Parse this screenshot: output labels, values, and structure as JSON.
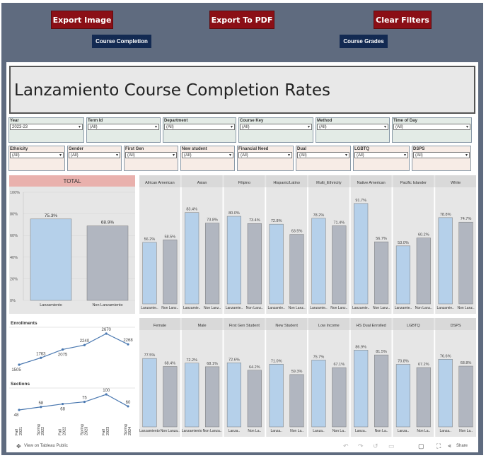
{
  "buttons": {
    "export_image": "Export Image",
    "export_pdf": "Export To PDF",
    "clear_filters": "Clear Filters",
    "course_completion": "Course Completion",
    "course_grades": "Course Grades"
  },
  "title": "Lanzamiento Course Completion Rates",
  "filters_row1": [
    {
      "label": "Year",
      "value": "2023-23"
    },
    {
      "label": "Term Id",
      "value": "(All)"
    },
    {
      "label": "Department",
      "value": "(All)"
    },
    {
      "label": "Course Key",
      "value": "(All)"
    },
    {
      "label": "Method",
      "value": "(All)"
    },
    {
      "label": "Time of Day",
      "value": "(All)"
    }
  ],
  "filters_row2": [
    {
      "label": "Ethnicity",
      "value": "(All)"
    },
    {
      "label": "Gender",
      "value": "(All)"
    },
    {
      "label": "First Gen",
      "value": "(All)"
    },
    {
      "label": "New student",
      "value": "(All)"
    },
    {
      "label": "Financial Need",
      "value": "(All)"
    },
    {
      "label": "Dual",
      "value": "(All)"
    },
    {
      "label": "LGBTQ",
      "value": "(All)"
    },
    {
      "label": "DSPS",
      "value": "(All)"
    }
  ],
  "colors": {
    "lanz": "#b5d0ea",
    "non": "#b1b6c0",
    "total_header": "#e9b1ad"
  },
  "chart_data": [
    {
      "type": "bar",
      "title": "TOTAL",
      "categories": [
        "Lanzamiento",
        "Non Lanzamiento"
      ],
      "values": [
        75.3,
        68.9
      ],
      "value_labels": [
        "75.3%",
        "68.9%"
      ],
      "ylim": [
        0,
        100
      ],
      "yticks": [
        "100%",
        "80%",
        "60%",
        "40%",
        "20%",
        "0%"
      ]
    },
    {
      "type": "bar",
      "groups": [
        "African American",
        "Asian",
        "Filipino",
        "Hispanic/Latino",
        "Multi_Ethnicity",
        "Native American",
        "Pacific Islander",
        "White"
      ],
      "categories": [
        "Lanzamie..",
        "Non Lanz..",
        "Lanzamie..",
        "Non Lanz..",
        "Lanzamie..",
        "Non Lanz..",
        "Lanzamie..",
        "Non Lanz..",
        "Lanzamie..",
        "Non Lanz..",
        "Lanzamie..",
        "Non Lanz..",
        "Lanzamie..",
        "Non Lanz..",
        "Lanzamie..",
        "Non Lanz.."
      ],
      "values": [
        56.2,
        58.5,
        83.4,
        73.8,
        80.0,
        73.4,
        72.8,
        63.5,
        78.2,
        71.4,
        91.7,
        56.7,
        53.0,
        60.2,
        78.8,
        74.7
      ],
      "value_labels": [
        "56.2%",
        "58.5%",
        "83.4%",
        "73.8%",
        "80.0%",
        "73.4%",
        "72.8%",
        "63.5%",
        "78.2%",
        "71.4%",
        "91.7%",
        "56.7%",
        "53.0%",
        "60.2%",
        "78.8%",
        "74.7%"
      ]
    },
    {
      "type": "line",
      "title": "Enrollments",
      "x": [
        "Fall 2021",
        "Spring 2022",
        "Fall 2022",
        "Spring 2023",
        "Fall 2023",
        "Spring 2024"
      ],
      "values": [
        1505,
        1763,
        2075,
        2240,
        2670,
        2268
      ],
      "value_labels": [
        "1505",
        "1763",
        "2075",
        "2240",
        "2670",
        "2268"
      ]
    },
    {
      "type": "line",
      "title": "Sections",
      "x": [
        "Fall 2021",
        "Spring 2022",
        "Fall 2022",
        "Spring 2023",
        "Fall 2023",
        "Spring 2024"
      ],
      "values": [
        48,
        58,
        68,
        75,
        100,
        60
      ],
      "value_labels": [
        "48",
        "58",
        "68",
        "75",
        "100",
        "60"
      ]
    },
    {
      "type": "bar",
      "groups": [
        "Female",
        "Male",
        "First Gen Student",
        "New Student",
        "Low Income",
        "HS Dual Enrolled",
        "LGBTQ",
        "DSPS"
      ],
      "categories": [
        "Lanzamiento",
        "Non Lanza..",
        "Lanzamiento",
        "Non Lanza..",
        "Lanza..",
        "Non La..",
        "Lanza..",
        "Non La..",
        "Lanza..",
        "Non La..",
        "Lanza..",
        "Non La..",
        "Lanza..",
        "Non La..",
        "Lanza..",
        "Non La.."
      ],
      "values": [
        77.5,
        68.4,
        72.2,
        68.1,
        72.6,
        64.2,
        71.0,
        59.3,
        75.7,
        67.1,
        86.9,
        81.5,
        70.8,
        67.2,
        76.6,
        68.8
      ],
      "value_labels": [
        "77.5%",
        "68.4%",
        "72.2%",
        "68.1%",
        "72.6%",
        "64.2%",
        "71.0%",
        "59.3%",
        "75.7%",
        "67.1%",
        "86.9%",
        "81.5%",
        "70.8%",
        "67.2%",
        "76.6%",
        "68.8%"
      ]
    }
  ],
  "toolbar": {
    "view_link": "View on Tableau Public",
    "share": "Share"
  }
}
